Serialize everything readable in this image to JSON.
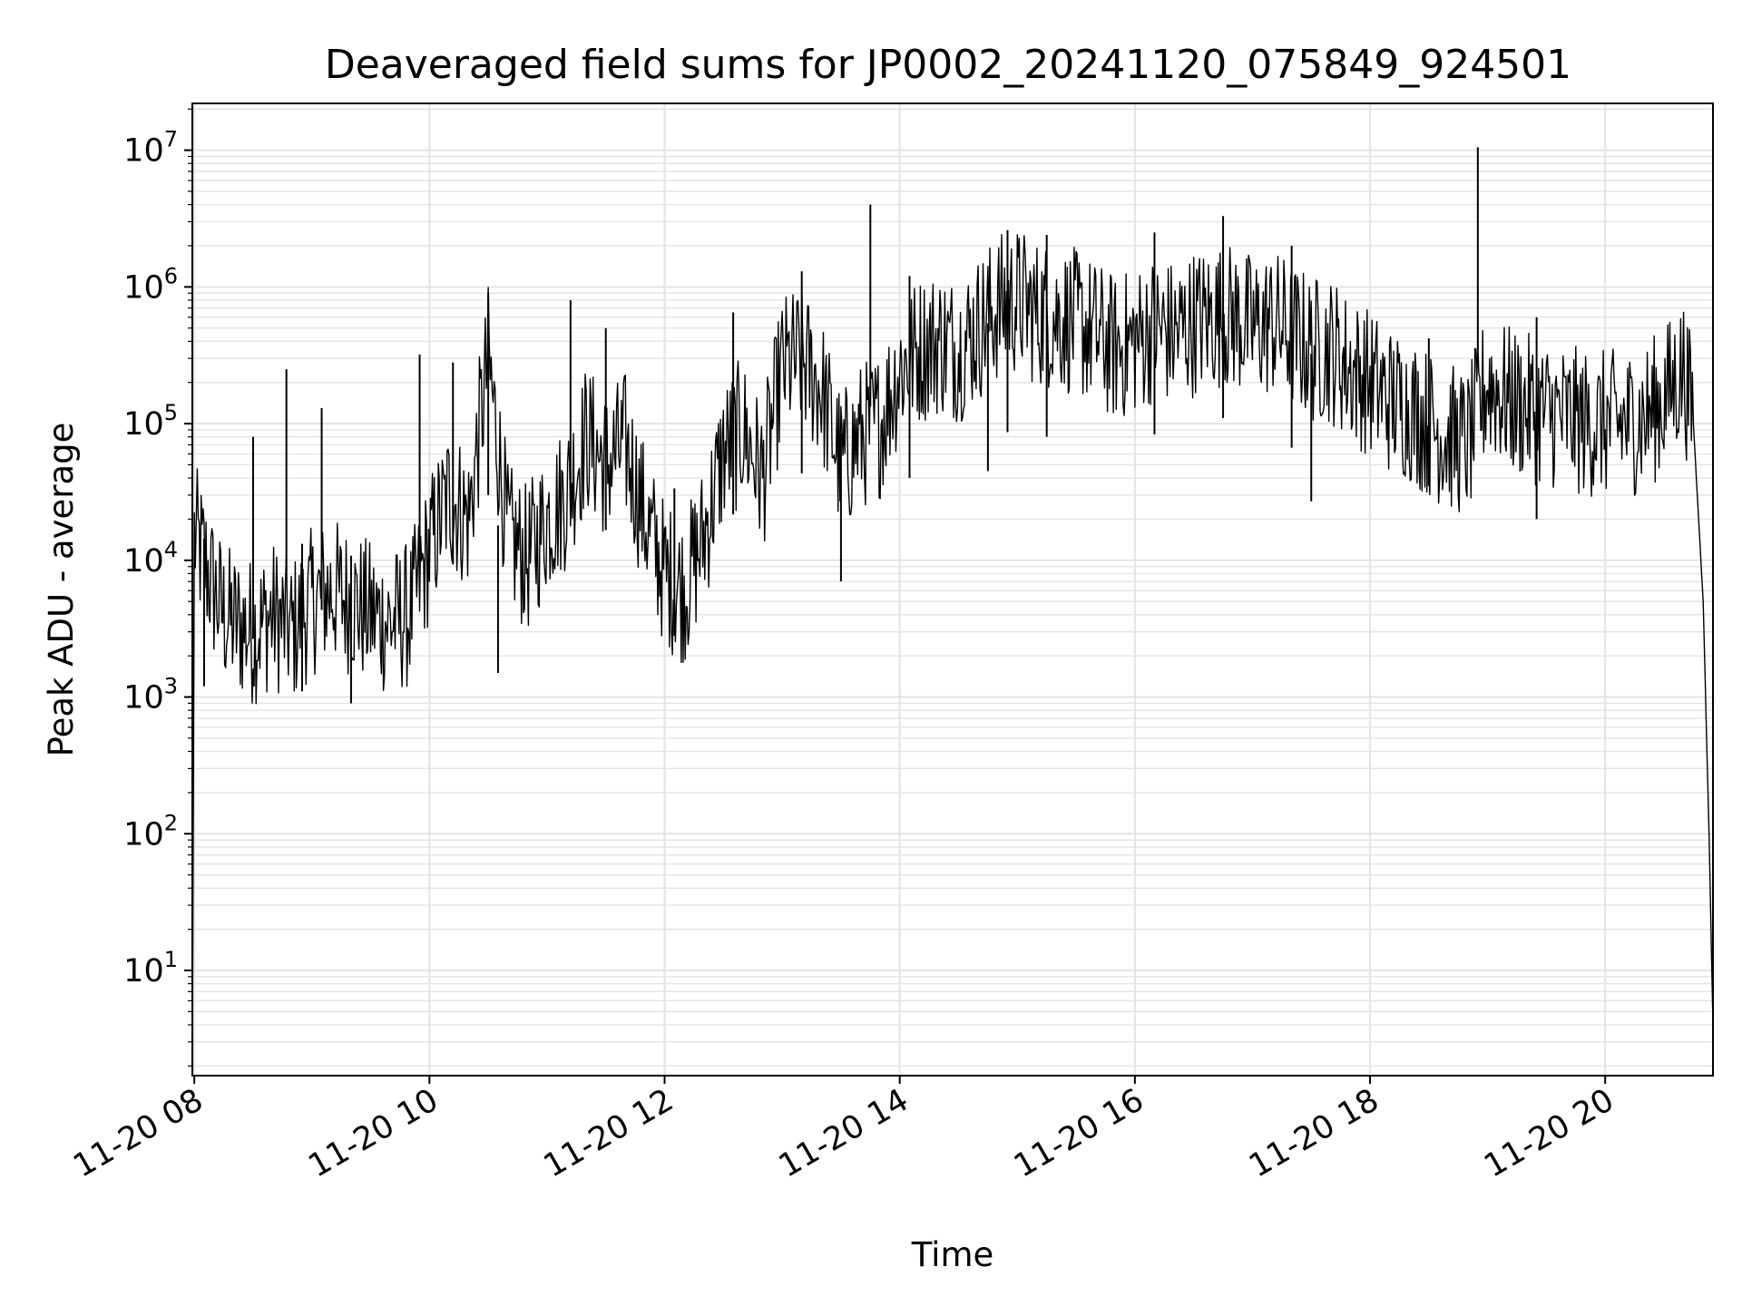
{
  "chart_data": {
    "type": "line",
    "title": "Deaveraged field sums for JP0002_20241120_075849_924501",
    "xlabel": "Time",
    "ylabel": "Peak ADU - average",
    "yscale": "log",
    "grid": true,
    "legend": "none",
    "colors": {
      "line": "#000000",
      "grid": "#e3e3e3",
      "axis": "#000000"
    },
    "xlim": [
      "2024-11-20 07:59",
      "2024-11-20 20:55"
    ],
    "ylim": [
      1.7,
      22000000
    ],
    "x_ticks": [
      {
        "value": "2024-11-20 08:00",
        "label": "11-20 08"
      },
      {
        "value": "2024-11-20 10:00",
        "label": "11-20 10"
      },
      {
        "value": "2024-11-20 12:00",
        "label": "11-20 12"
      },
      {
        "value": "2024-11-20 14:00",
        "label": "11-20 14"
      },
      {
        "value": "2024-11-20 16:00",
        "label": "11-20 16"
      },
      {
        "value": "2024-11-20 18:00",
        "label": "11-20 18"
      },
      {
        "value": "2024-11-20 20:00",
        "label": "11-20 20"
      }
    ],
    "y_ticks": [
      {
        "value": 10,
        "base": "10",
        "exp": "1"
      },
      {
        "value": 100,
        "base": "10",
        "exp": "2"
      },
      {
        "value": 1000,
        "base": "10",
        "exp": "3"
      },
      {
        "value": 10000,
        "base": "10",
        "exp": "4"
      },
      {
        "value": 100000,
        "base": "10",
        "exp": "5"
      },
      {
        "value": 1000000,
        "base": "10",
        "exp": "6"
      },
      {
        "value": 10000000,
        "base": "10",
        "exp": "7"
      }
    ],
    "series": [
      {
        "x": [
          "2024-11-20 07:59",
          "2024-11-20 08:00",
          "2024-11-20 08:05",
          "2024-11-20 08:10",
          "2024-11-20 08:15",
          "2024-11-20 08:20",
          "2024-11-20 08:30",
          "2024-11-20 08:40",
          "2024-11-20 08:50",
          "2024-11-20 09:00",
          "2024-11-20 09:10",
          "2024-11-20 09:20",
          "2024-11-20 09:30",
          "2024-11-20 09:40",
          "2024-11-20 09:50",
          "2024-11-20 10:00",
          "2024-11-20 10:10",
          "2024-11-20 10:20",
          "2024-11-20 10:30",
          "2024-11-20 10:40",
          "2024-11-20 10:50",
          "2024-11-20 11:00",
          "2024-11-20 11:10",
          "2024-11-20 11:20",
          "2024-11-20 11:30",
          "2024-11-20 11:40",
          "2024-11-20 11:50",
          "2024-11-20 12:00",
          "2024-11-20 12:10",
          "2024-11-20 12:20",
          "2024-11-20 12:30",
          "2024-11-20 12:40",
          "2024-11-20 12:50",
          "2024-11-20 13:00",
          "2024-11-20 13:10",
          "2024-11-20 13:20",
          "2024-11-20 13:30",
          "2024-11-20 13:40",
          "2024-11-20 13:50",
          "2024-11-20 14:00",
          "2024-11-20 14:10",
          "2024-11-20 14:20",
          "2024-11-20 14:30",
          "2024-11-20 14:40",
          "2024-11-20 14:50",
          "2024-11-20 15:00",
          "2024-11-20 15:10",
          "2024-11-20 15:20",
          "2024-11-20 15:30",
          "2024-11-20 15:40",
          "2024-11-20 15:50",
          "2024-11-20 16:00",
          "2024-11-20 16:10",
          "2024-11-20 16:20",
          "2024-11-20 16:30",
          "2024-11-20 16:40",
          "2024-11-20 16:50",
          "2024-11-20 17:00",
          "2024-11-20 17:10",
          "2024-11-20 17:20",
          "2024-11-20 17:30",
          "2024-11-20 17:40",
          "2024-11-20 17:50",
          "2024-11-20 18:00",
          "2024-11-20 18:10",
          "2024-11-20 18:20",
          "2024-11-20 18:30",
          "2024-11-20 18:40",
          "2024-11-20 18:50",
          "2024-11-20 19:00",
          "2024-11-20 19:10",
          "2024-11-20 19:20",
          "2024-11-20 19:30",
          "2024-11-20 19:40",
          "2024-11-20 19:50",
          "2024-11-20 20:00",
          "2024-11-20 20:10",
          "2024-11-20 20:20",
          "2024-11-20 20:30",
          "2024-11-20 20:40",
          "2024-11-20 20:45",
          "2024-11-20 20:50",
          "2024-11-20 20:53",
          "2024-11-20 20:55"
        ],
        "y": [
          2,
          15000,
          10000,
          6000,
          4000,
          3500,
          3000,
          4000,
          3000,
          5000,
          6000,
          5000,
          4000,
          3500,
          4000,
          12000,
          30000,
          20000,
          300000,
          15000,
          10000,
          20000,
          30000,
          80000,
          50000,
          70000,
          20000,
          8000,
          6000,
          15000,
          60000,
          90000,
          40000,
          250000,
          300000,
          180000,
          50000,
          80000,
          100000,
          250000,
          350000,
          400000,
          350000,
          500000,
          700000,
          800000,
          650000,
          600000,
          550000,
          450000,
          350000,
          400000,
          500000,
          450000,
          550000,
          600000,
          600000,
          500000,
          550000,
          450000,
          350000,
          350000,
          250000,
          200000,
          150000,
          130000,
          100000,
          80000,
          70000,
          200000,
          150000,
          130000,
          120000,
          110000,
          100000,
          100000,
          100000,
          110000,
          150000,
          250000,
          100000,
          5000,
          100,
          4
        ]
      }
    ],
    "spikes": [
      {
        "x": "2024-11-20 08:30",
        "y": 80000
      },
      {
        "x": "2024-11-20 08:47",
        "y": 250000
      },
      {
        "x": "2024-11-20 09:05",
        "y": 130000
      },
      {
        "x": "2024-11-20 09:55",
        "y": 320000
      },
      {
        "x": "2024-11-20 10:12",
        "y": 280000
      },
      {
        "x": "2024-11-20 10:30",
        "y": 900000
      },
      {
        "x": "2024-11-20 11:12",
        "y": 800000
      },
      {
        "x": "2024-11-20 11:30",
        "y": 500000
      },
      {
        "x": "2024-11-20 12:35",
        "y": 650000
      },
      {
        "x": "2024-11-20 13:10",
        "y": 1300000
      },
      {
        "x": "2024-11-20 13:45",
        "y": 4000000
      },
      {
        "x": "2024-11-20 14:05",
        "y": 1200000
      },
      {
        "x": "2024-11-20 14:55",
        "y": 2600000
      },
      {
        "x": "2024-11-20 15:15",
        "y": 2400000
      },
      {
        "x": "2024-11-20 16:10",
        "y": 2500000
      },
      {
        "x": "2024-11-20 16:45",
        "y": 3300000
      },
      {
        "x": "2024-11-20 17:20",
        "y": 2000000
      },
      {
        "x": "2024-11-20 18:55",
        "y": 10500000
      },
      {
        "x": "2024-11-20 19:25",
        "y": 600000
      }
    ],
    "dips": [
      {
        "x": "2024-11-20 08:05",
        "y": 1200
      },
      {
        "x": "2024-11-20 08:55",
        "y": 1100
      },
      {
        "x": "2024-11-20 09:20",
        "y": 900
      },
      {
        "x": "2024-11-20 10:35",
        "y": 1500
      },
      {
        "x": "2024-11-20 12:05",
        "y": 2800
      },
      {
        "x": "2024-11-20 13:30",
        "y": 7000
      },
      {
        "x": "2024-11-20 14:45",
        "y": 45000
      },
      {
        "x": "2024-11-20 17:30",
        "y": 27000
      },
      {
        "x": "2024-11-20 18:30",
        "y": 35000
      }
    ]
  }
}
